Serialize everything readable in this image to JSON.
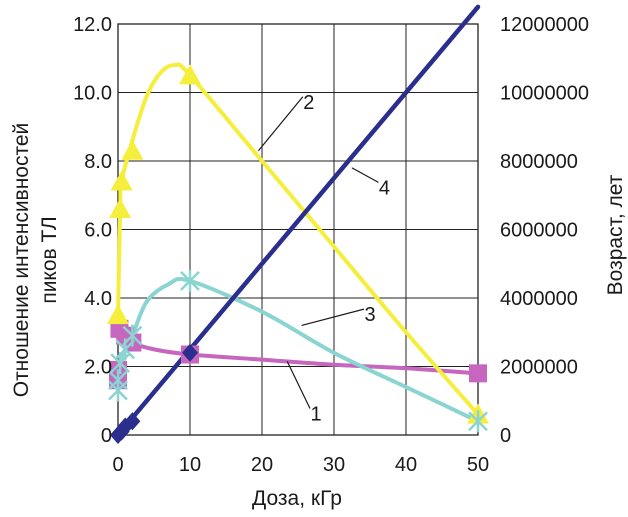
{
  "chart_data": {
    "type": "line",
    "xlabel": "Доза, кГр",
    "ylabel_left": [
      "Отношение интенсивностей",
      "пиков ТЛ"
    ],
    "ylabel_right": "Возраст, лет",
    "x_ticks": [
      "0",
      "10",
      "20",
      "30",
      "40",
      "50"
    ],
    "y_left_ticks": [
      "0",
      "2.0",
      "4.0",
      "6.0",
      "8.0",
      "10.0",
      "12.0"
    ],
    "y_right_ticks": [
      "0",
      "2000000",
      "4000000",
      "6000000",
      "8000000",
      "10000000",
      "12000000"
    ],
    "xlim": [
      0,
      50
    ],
    "ylim_left": [
      0,
      12
    ],
    "ylim_right": [
      0,
      12000000
    ],
    "grid": true,
    "series": [
      {
        "name": "1",
        "axis": "left",
        "color": "#c766be",
        "marker": "square",
        "points": [
          [
            0,
            1.6
          ],
          [
            0,
            1.9
          ],
          [
            0.2,
            3.1
          ],
          [
            1,
            2.9
          ],
          [
            2,
            2.7
          ],
          [
            10,
            2.35
          ],
          [
            50,
            1.8
          ]
        ],
        "curve": [
          [
            0.2,
            3.1
          ],
          [
            1,
            2.9
          ],
          [
            2,
            2.7
          ],
          [
            5,
            2.5
          ],
          [
            10,
            2.35
          ],
          [
            20,
            2.2
          ],
          [
            30,
            2.05
          ],
          [
            40,
            1.95
          ],
          [
            50,
            1.8
          ]
        ]
      },
      {
        "name": "2",
        "axis": "left",
        "color": "#f6ee3c",
        "marker": "triangle",
        "points": [
          [
            0,
            3.5
          ],
          [
            0.3,
            6.6
          ],
          [
            0.5,
            7.4
          ],
          [
            2,
            8.3
          ],
          [
            10,
            10.5
          ],
          [
            50,
            0.6
          ]
        ],
        "curve": [
          [
            0,
            3.5
          ],
          [
            0.3,
            6.6
          ],
          [
            0.5,
            7.4
          ],
          [
            2,
            8.6
          ],
          [
            4,
            9.9
          ],
          [
            6,
            10.6
          ],
          [
            8,
            10.8
          ],
          [
            10,
            10.5
          ],
          [
            20,
            8.0
          ],
          [
            30,
            5.5
          ],
          [
            40,
            3.0
          ],
          [
            50,
            0.6
          ]
        ]
      },
      {
        "name": "3",
        "axis": "left",
        "color": "#8ad4d1",
        "marker": "x",
        "points": [
          [
            0,
            1.3
          ],
          [
            0,
            1.6
          ],
          [
            0.3,
            2.1
          ],
          [
            1,
            2.5
          ],
          [
            2,
            2.9
          ],
          [
            10,
            4.5
          ],
          [
            50,
            0.4
          ]
        ],
        "curve": [
          [
            0,
            1.3
          ],
          [
            0.3,
            2.1
          ],
          [
            1,
            2.5
          ],
          [
            2,
            2.9
          ],
          [
            4,
            3.9
          ],
          [
            7,
            4.4
          ],
          [
            10,
            4.5
          ],
          [
            20,
            3.6
          ],
          [
            30,
            2.4
          ],
          [
            40,
            1.4
          ],
          [
            50,
            0.4
          ]
        ]
      },
      {
        "name": "4",
        "axis": "right",
        "color": "#2a2e8c",
        "marker": "diamond",
        "points": [
          [
            0,
            0
          ],
          [
            0.5,
            100000
          ],
          [
            1,
            250000
          ],
          [
            2,
            400000
          ],
          [
            10,
            2400000
          ]
        ],
        "curve": [
          [
            0,
            0
          ],
          [
            50,
            12500000
          ]
        ]
      }
    ],
    "annotations": [
      {
        "text": "1",
        "at": [
          27.5,
          0.6
        ],
        "line_to": [
          23.5,
          2.15
        ]
      },
      {
        "text": "2",
        "at": [
          26.5,
          9.7
        ],
        "line_to": [
          19.5,
          8.3
        ]
      },
      {
        "text": "3",
        "at": [
          35,
          3.5
        ],
        "line_to": [
          25.5,
          3.2
        ]
      },
      {
        "text": "4",
        "at": [
          37,
          7.2
        ],
        "line_to": [
          32.5,
          7.8
        ]
      }
    ]
  }
}
